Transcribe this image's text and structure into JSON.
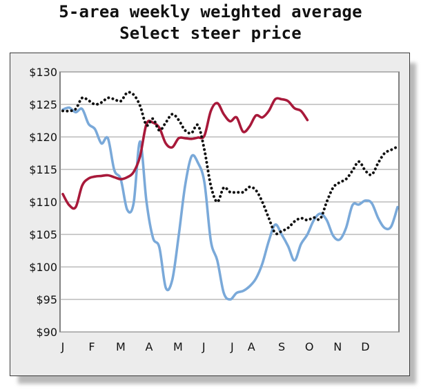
{
  "title": {
    "line1": "5-area weekly weighted average",
    "line2": "Select steer price"
  },
  "chart_data": {
    "type": "line",
    "title": "5-area weekly weighted average Select steer price",
    "xlabel": "",
    "ylabel": "",
    "xlim": [
      1,
      53
    ],
    "ylim": [
      90,
      130
    ],
    "grid": true,
    "y_ticks": [
      {
        "value": 130,
        "label": "$130"
      },
      {
        "value": 125,
        "label": "$125"
      },
      {
        "value": 120,
        "label": "$120"
      },
      {
        "value": 115,
        "label": "$115"
      },
      {
        "value": 110,
        "label": "$110"
      },
      {
        "value": 105,
        "label": "$105"
      },
      {
        "value": 100,
        "label": "$100"
      },
      {
        "value": 95,
        "label": "$95"
      },
      {
        "value": 90,
        "label": "$90"
      }
    ],
    "x_ticks": [
      {
        "label": "J",
        "week": 1
      },
      {
        "label": "F",
        "week": 5.5
      },
      {
        "label": "M",
        "week": 10
      },
      {
        "label": "A",
        "week": 14.4
      },
      {
        "label": "M",
        "week": 18.9
      },
      {
        "label": "J",
        "week": 22.9
      },
      {
        "label": "J",
        "week": 27.3
      },
      {
        "label": "A",
        "week": 30.3
      },
      {
        "label": "S",
        "week": 35
      },
      {
        "label": "O",
        "week": 39.3
      },
      {
        "label": "N",
        "week": 43.7
      },
      {
        "label": "D",
        "week": 48
      }
    ],
    "series": [
      {
        "key": "blue",
        "color": "#7aa9d9",
        "style": "solid",
        "x": [
          1,
          2,
          3,
          4,
          5,
          6,
          7,
          8,
          9,
          10,
          11,
          12,
          13,
          14,
          15,
          16,
          17,
          18,
          19,
          20,
          21,
          22,
          23,
          24,
          25,
          26,
          27,
          28,
          29,
          30,
          31,
          32,
          33,
          34,
          35,
          36,
          37,
          38,
          39,
          40,
          41,
          42,
          43,
          44,
          45,
          46,
          47,
          48,
          49,
          50,
          51,
          52,
          53
        ],
        "y": [
          124.2,
          124.5,
          123.8,
          124.3,
          122.0,
          121.2,
          119.0,
          119.8,
          114.9,
          113.5,
          108.8,
          109.8,
          119.3,
          110.0,
          104.5,
          103.0,
          96.8,
          98.0,
          104.8,
          112.5,
          117.0,
          116.0,
          113.0,
          104.0,
          101.0,
          96.0,
          95.0,
          96.0,
          96.3,
          97.0,
          98.2,
          100.5,
          104.0,
          106.5,
          105.0,
          103.2,
          101.0,
          103.5,
          105.0,
          107.2,
          108.2,
          107.2,
          104.8,
          104.2,
          106.0,
          109.5,
          109.6,
          110.2,
          109.8,
          107.5,
          106.0,
          106.2,
          109.2
        ]
      },
      {
        "key": "red",
        "color": "#a8193a",
        "style": "solid",
        "x": [
          1,
          2,
          3,
          4,
          5,
          6,
          7,
          8,
          9,
          10,
          11,
          12,
          13,
          14,
          15,
          16,
          17,
          18,
          19,
          20,
          21,
          22,
          23,
          24,
          25,
          26,
          27,
          28,
          29,
          30,
          31,
          32,
          33,
          34,
          35,
          36,
          37,
          38,
          39
        ],
        "y": [
          111.2,
          109.5,
          109.2,
          112.5,
          113.6,
          113.9,
          114.0,
          114.1,
          113.8,
          113.5,
          113.8,
          114.6,
          117.0,
          122.0,
          122.2,
          121.4,
          119.0,
          118.4,
          119.8,
          119.8,
          119.7,
          119.9,
          120.2,
          124.0,
          125.2,
          123.5,
          122.4,
          123.0,
          120.8,
          121.6,
          123.3,
          123.0,
          124.0,
          125.8,
          125.8,
          125.5,
          124.4,
          124.0,
          122.6
        ]
      },
      {
        "key": "dotted",
        "color": "#111111",
        "style": "dotted",
        "x": [
          1,
          2,
          3,
          4,
          5,
          6,
          7,
          8,
          9,
          10,
          11,
          12,
          13,
          14,
          15,
          16,
          17,
          18,
          19,
          20,
          21,
          22,
          23,
          24,
          25,
          26,
          27,
          28,
          29,
          30,
          31,
          32,
          33,
          34,
          35,
          36,
          37,
          38,
          39,
          40,
          41,
          42,
          43,
          44,
          45,
          46,
          47,
          48,
          49,
          50,
          51,
          52,
          53
        ],
        "y": [
          124.0,
          124.0,
          124.3,
          126.0,
          125.6,
          125.0,
          125.3,
          126.0,
          125.8,
          125.5,
          126.8,
          126.5,
          124.8,
          121.8,
          122.8,
          121.0,
          122.2,
          123.5,
          122.6,
          121.0,
          120.6,
          121.8,
          118.0,
          112.5,
          110.0,
          112.2,
          111.5,
          111.5,
          111.5,
          112.3,
          111.8,
          110.0,
          107.5,
          105.2,
          105.5,
          106.0,
          107.0,
          107.5,
          107.2,
          107.6,
          107.4,
          110.0,
          112.2,
          113.0,
          113.5,
          114.8,
          116.2,
          114.8,
          114.2,
          116.0,
          117.5,
          118.0,
          118.5
        ]
      }
    ]
  }
}
